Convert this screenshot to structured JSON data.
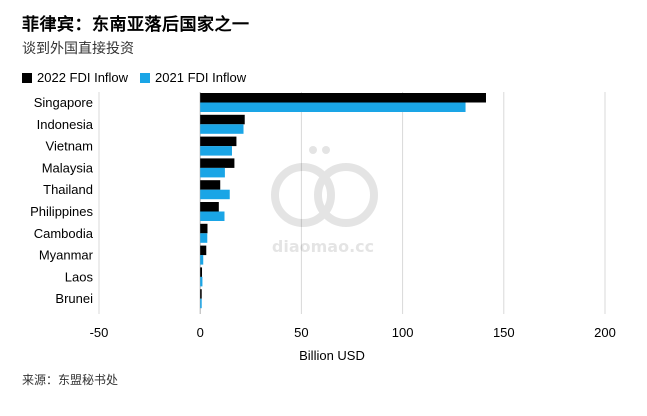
{
  "title": "菲律宾：东南亚落后国家之一",
  "subtitle": "谈到外国直接投资",
  "source": "来源：东盟秘书处",
  "watermark_text": "diaomao.cc",
  "colors": {
    "series_2022": "#000000",
    "series_2021": "#1aa5e6",
    "grid": "#d9d9d9",
    "zero": "#b0b0b0"
  },
  "chart_data": {
    "type": "bar",
    "orientation": "horizontal",
    "categories": [
      "Singapore",
      "Indonesia",
      "Vietnam",
      "Malaysia",
      "Thailand",
      "Philippines",
      "Cambodia",
      "Myanmar",
      "Laos",
      "Brunei"
    ],
    "series": [
      {
        "name": "2022 FDI Inflow",
        "values": [
          141.2,
          22.0,
          17.9,
          16.9,
          9.9,
          9.2,
          3.6,
          3.0,
          0.9,
          0.6
        ]
      },
      {
        "name": "2021 FDI Inflow",
        "values": [
          131.1,
          21.4,
          15.7,
          12.2,
          14.6,
          12.0,
          3.5,
          1.5,
          1.1,
          0.5
        ]
      }
    ],
    "xlabel": "Billion USD",
    "xlim": [
      -50,
      200
    ],
    "xticks": [
      -50,
      0,
      50,
      100,
      150,
      200
    ],
    "xtick_labels": [
      "-50",
      "0",
      "50",
      "100",
      "150",
      "200"
    ],
    "grid": true,
    "legend_position": "top-left"
  }
}
